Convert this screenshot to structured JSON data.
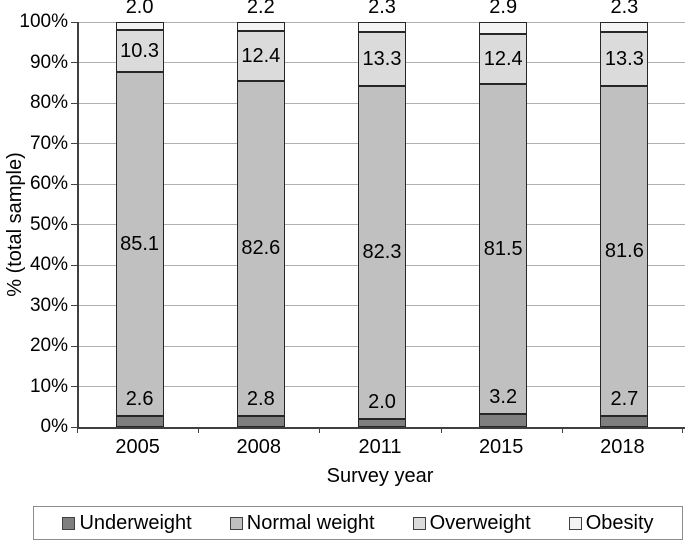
{
  "chart_data": {
    "type": "bar",
    "variant": "stacked-100",
    "title": "",
    "xlabel": "Survey year",
    "ylabel": "% (total sample)",
    "categories": [
      "2005",
      "2008",
      "2011",
      "2015",
      "2018"
    ],
    "series": [
      {
        "name": "Underweight",
        "color": "#7f7f7f",
        "values": [
          2.6,
          2.8,
          2.0,
          3.2,
          2.7
        ]
      },
      {
        "name": "Normal weight",
        "color": "#c0c0c0",
        "values": [
          85.1,
          82.6,
          82.3,
          81.5,
          81.6
        ]
      },
      {
        "name": "Overweight",
        "color": "#dbdbdb",
        "values": [
          10.3,
          12.4,
          13.3,
          12.4,
          13.3
        ]
      },
      {
        "name": "Obesity",
        "color": "#f3f3f3",
        "values": [
          2.0,
          2.2,
          2.3,
          2.9,
          2.3
        ]
      }
    ],
    "y_ticks": [
      "0%",
      "10%",
      "20%",
      "30%",
      "40%",
      "50%",
      "60%",
      "70%",
      "80%",
      "90%",
      "100%"
    ],
    "ylim": [
      0,
      100
    ],
    "grid": true,
    "legend_position": "bottom",
    "colors": {
      "segment_border": "#262626",
      "gridline": "#b0b0b0",
      "axis": "#404040",
      "legend_border": "#8c8c8c",
      "text": "#000000"
    }
  }
}
